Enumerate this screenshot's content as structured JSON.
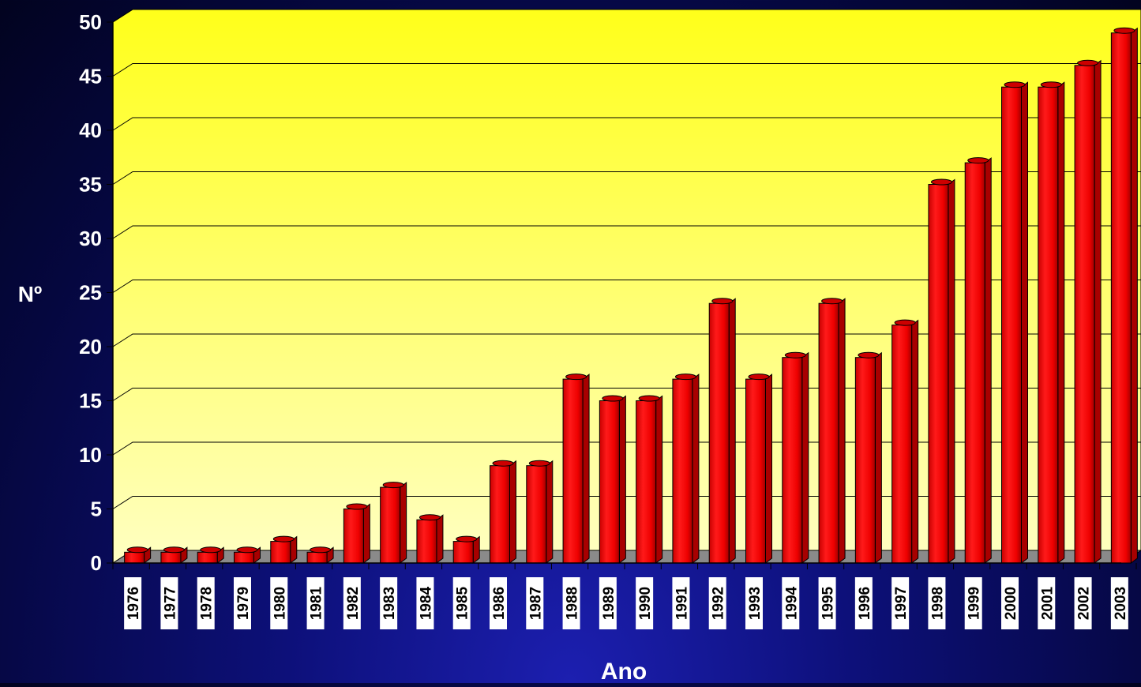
{
  "chart_data": {
    "type": "bar",
    "xlabel": "Ano",
    "ylabel": "Nº",
    "ylim": [
      0,
      50
    ],
    "yticks": [
      "0",
      "5",
      "10",
      "15",
      "20",
      "25",
      "30",
      "35",
      "40",
      "45",
      "50"
    ],
    "grid": true,
    "legend": "none",
    "style": "3d-cylinder",
    "categories": [
      "1976",
      "1977",
      "1978",
      "1979",
      "1980",
      "1981",
      "1982",
      "1983",
      "1984",
      "1985",
      "1986",
      "1987",
      "1988",
      "1989",
      "1990",
      "1991",
      "1992",
      "1993",
      "1994",
      "1995",
      "1996",
      "1997",
      "1998",
      "1999",
      "2000",
      "2001",
      "2002",
      "2003"
    ],
    "values": [
      1,
      1,
      1,
      1,
      2,
      1,
      5,
      7,
      4,
      2,
      9,
      9,
      17,
      15,
      15,
      17,
      24,
      17,
      19,
      24,
      19,
      22,
      35,
      37,
      44,
      44,
      46,
      49
    ]
  },
  "colors": {
    "bar": "#ff0000",
    "bar_shadow": "#a80000",
    "bar_top": "#cc0000",
    "plot_top": "#ffff1a",
    "plot_bottom": "#ffffc2",
    "floor": "#8a8a8a",
    "axis_text": "#ffffff",
    "tick_label_bg": "#ffffff",
    "tick_label_text": "#000000"
  }
}
